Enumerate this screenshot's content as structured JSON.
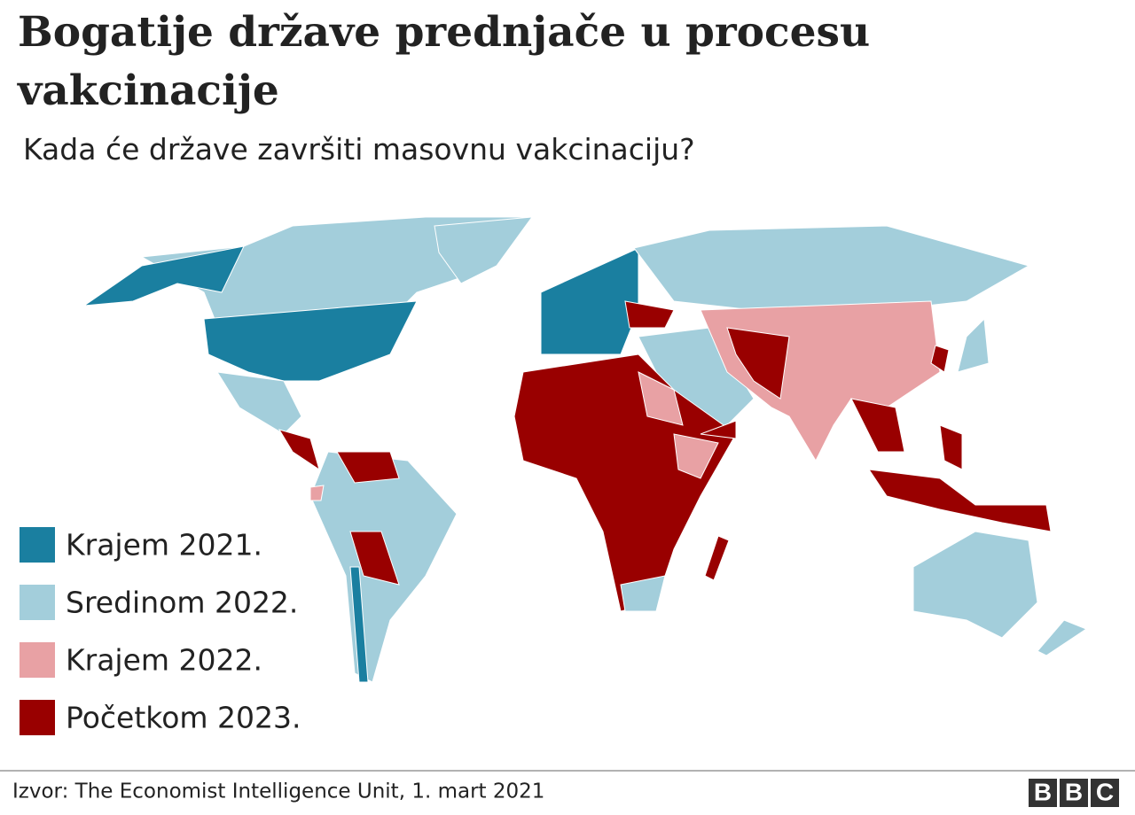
{
  "header": {
    "title_lines": [
      "Bogatije države prednjače u procesu",
      "vakcinacije"
    ],
    "subtitle": "Kada će države završiti masovnu vakcinaciju?"
  },
  "legend": [
    {
      "label": "Krajem 2021.",
      "color": "#1a7fa0"
    },
    {
      "label": "Sredinom 2022.",
      "color": "#a3cedb"
    },
    {
      "label": "Krajem 2022.",
      "color": "#e8a1a4"
    },
    {
      "label": "Početkom 2023.",
      "color": "#990000"
    }
  ],
  "footer": {
    "source": "Izvor: The Economist Intelligence Unit, 1. mart 2021",
    "logo": [
      "B",
      "B",
      "C"
    ]
  }
}
